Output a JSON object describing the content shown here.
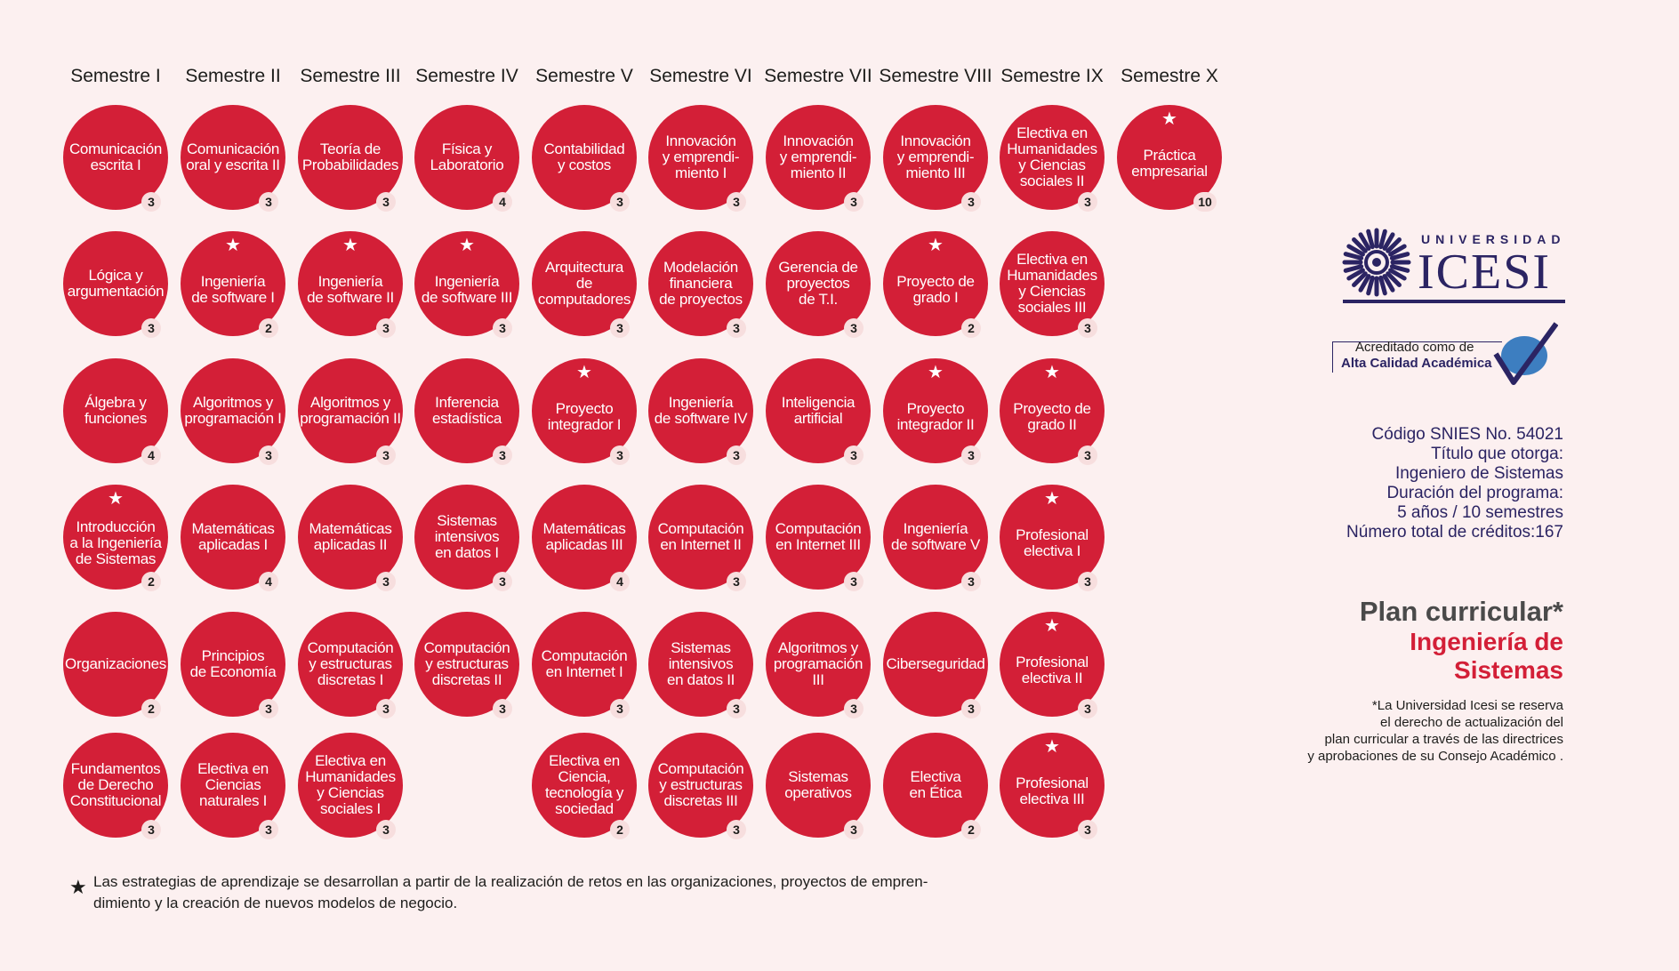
{
  "semesters": [
    "Semestre I",
    "Semestre II",
    "Semestre III",
    "Semestre IV",
    "Semestre V",
    "Semestre VI",
    "Semestre VII",
    "Semestre VIII",
    "Semestre IX",
    "Semestre X"
  ],
  "courses": [
    {
      "name": "Comunicación\nescrita I",
      "credits": "3",
      "star": false,
      "col": 0,
      "row": 0
    },
    {
      "name": "Lógica y\nargumentación",
      "credits": "3",
      "star": false,
      "col": 0,
      "row": 1
    },
    {
      "name": "Álgebra y\nfunciones",
      "credits": "4",
      "star": false,
      "col": 0,
      "row": 2
    },
    {
      "name": "Introducción\na la Ingeniería\nde Sistemas",
      "credits": "2",
      "star": true,
      "col": 0,
      "row": 3
    },
    {
      "name": "Organizaciones",
      "credits": "2",
      "star": false,
      "col": 0,
      "row": 4
    },
    {
      "name": "Fundamentos\nde Derecho\nConstitucional",
      "credits": "3",
      "star": false,
      "col": 0,
      "row": 5
    },
    {
      "name": "Comunicación\noral y escrita II",
      "credits": "3",
      "star": false,
      "col": 1,
      "row": 0
    },
    {
      "name": "Ingeniería\nde software I",
      "credits": "2",
      "star": true,
      "col": 1,
      "row": 1
    },
    {
      "name": "Algoritmos y\nprogramación I",
      "credits": "3",
      "star": false,
      "col": 1,
      "row": 2
    },
    {
      "name": "Matemáticas\naplicadas I",
      "credits": "4",
      "star": false,
      "col": 1,
      "row": 3
    },
    {
      "name": "Principios\nde Economía",
      "credits": "3",
      "star": false,
      "col": 1,
      "row": 4
    },
    {
      "name": "Electiva en\nCiencias\nnaturales I",
      "credits": "3",
      "star": false,
      "col": 1,
      "row": 5
    },
    {
      "name": "Teoría de\nProbabilidades",
      "credits": "3",
      "star": false,
      "col": 2,
      "row": 0
    },
    {
      "name": "Ingeniería\nde software II",
      "credits": "3",
      "star": true,
      "col": 2,
      "row": 1
    },
    {
      "name": "Algoritmos y\nprogramación II",
      "credits": "3",
      "star": false,
      "col": 2,
      "row": 2
    },
    {
      "name": "Matemáticas\naplicadas II",
      "credits": "3",
      "star": false,
      "col": 2,
      "row": 3
    },
    {
      "name": "Computación\ny estructuras\ndiscretas I",
      "credits": "3",
      "star": false,
      "col": 2,
      "row": 4
    },
    {
      "name": "Electiva en\nHumanidades\ny Ciencias\nsociales I",
      "credits": "3",
      "star": false,
      "col": 2,
      "row": 5
    },
    {
      "name": "Física y\nLaboratorio",
      "credits": "4",
      "star": false,
      "col": 3,
      "row": 0
    },
    {
      "name": "Ingeniería\nde software III",
      "credits": "3",
      "star": true,
      "col": 3,
      "row": 1
    },
    {
      "name": "Inferencia\nestadística",
      "credits": "3",
      "star": false,
      "col": 3,
      "row": 2
    },
    {
      "name": "Sistemas\nintensivos\nen datos I",
      "credits": "3",
      "star": false,
      "col": 3,
      "row": 3
    },
    {
      "name": "Computación\ny estructuras\ndiscretas II",
      "credits": "3",
      "star": false,
      "col": 3,
      "row": 4
    },
    {
      "name": "Contabilidad\ny costos",
      "credits": "3",
      "star": false,
      "col": 4,
      "row": 0
    },
    {
      "name": "Arquitectura\nde\ncomputadores",
      "credits": "3",
      "star": false,
      "col": 4,
      "row": 1
    },
    {
      "name": "Proyecto\nintegrador I",
      "credits": "3",
      "star": true,
      "col": 4,
      "row": 2
    },
    {
      "name": "Matemáticas\naplicadas III",
      "credits": "4",
      "star": false,
      "col": 4,
      "row": 3
    },
    {
      "name": "Computación\nen Internet I",
      "credits": "3",
      "star": false,
      "col": 4,
      "row": 4
    },
    {
      "name": "Electiva en\nCiencia,\ntecnología y\nsociedad",
      "credits": "2",
      "star": false,
      "col": 4,
      "row": 5
    },
    {
      "name": "Innovación\ny emprendi-\nmiento I",
      "credits": "3",
      "star": false,
      "col": 5,
      "row": 0
    },
    {
      "name": "Modelación\nfinanciera\nde proyectos",
      "credits": "3",
      "star": false,
      "col": 5,
      "row": 1
    },
    {
      "name": "Ingeniería\nde software IV",
      "credits": "3",
      "star": false,
      "col": 5,
      "row": 2
    },
    {
      "name": "Computación\nen Internet II",
      "credits": "3",
      "star": false,
      "col": 5,
      "row": 3
    },
    {
      "name": "Sistemas\nintensivos\nen datos II",
      "credits": "3",
      "star": false,
      "col": 5,
      "row": 4
    },
    {
      "name": "Computación\ny estructuras\ndiscretas III",
      "credits": "3",
      "star": false,
      "col": 5,
      "row": 5
    },
    {
      "name": "Innovación\ny emprendi-\nmiento II",
      "credits": "3",
      "star": false,
      "col": 6,
      "row": 0
    },
    {
      "name": "Gerencia de\nproyectos\nde T.I.",
      "credits": "3",
      "star": false,
      "col": 6,
      "row": 1
    },
    {
      "name": "Inteligencia\nartificial",
      "credits": "3",
      "star": false,
      "col": 6,
      "row": 2
    },
    {
      "name": "Computación\nen Internet III",
      "credits": "3",
      "star": false,
      "col": 6,
      "row": 3
    },
    {
      "name": "Algoritmos y\nprogramación\nIII",
      "credits": "3",
      "star": false,
      "col": 6,
      "row": 4
    },
    {
      "name": "Sistemas\noperativos",
      "credits": "3",
      "star": false,
      "col": 6,
      "row": 5
    },
    {
      "name": "Innovación\ny emprendi-\nmiento III",
      "credits": "3",
      "star": false,
      "col": 7,
      "row": 0
    },
    {
      "name": "Proyecto de\ngrado I",
      "credits": "2",
      "star": true,
      "col": 7,
      "row": 1
    },
    {
      "name": "Proyecto\nintegrador II",
      "credits": "3",
      "star": true,
      "col": 7,
      "row": 2
    },
    {
      "name": "Ingeniería\nde software V",
      "credits": "3",
      "star": false,
      "col": 7,
      "row": 3
    },
    {
      "name": "Ciberseguridad",
      "credits": "3",
      "star": false,
      "col": 7,
      "row": 4
    },
    {
      "name": "Electiva\nen Ética",
      "credits": "2",
      "star": false,
      "col": 7,
      "row": 5
    },
    {
      "name": "Electiva en\nHumanidades\ny Ciencias\nsociales II",
      "credits": "3",
      "star": false,
      "col": 8,
      "row": 0
    },
    {
      "name": "Electiva en\nHumanidades\ny Ciencias\nsociales III",
      "credits": "3",
      "star": false,
      "col": 8,
      "row": 1
    },
    {
      "name": "Proyecto de\ngrado II",
      "credits": "3",
      "star": true,
      "col": 8,
      "row": 2
    },
    {
      "name": "Profesional\nelectiva I",
      "credits": "3",
      "star": true,
      "col": 8,
      "row": 3
    },
    {
      "name": "Profesional\nelectiva II",
      "credits": "3",
      "star": true,
      "col": 8,
      "row": 4
    },
    {
      "name": "Profesional\nelectiva III",
      "credits": "3",
      "star": true,
      "col": 8,
      "row": 5
    },
    {
      "name": "Práctica\nempresarial",
      "credits": "10",
      "star": true,
      "col": 9,
      "row": 0
    }
  ],
  "footnote": "Las estrategias de aprendizaje se desarrollan a partir de la realización de retos en las organizaciones, proyectos de empren-\ndimiento y la creación de nuevos modelos de negocio.",
  "logo": {
    "top_word": "UNIVERSIDAD",
    "main_word": "ICESI",
    "color": "#2b2463"
  },
  "accreditation": {
    "line1": "Acreditado como de",
    "line2": "Alta Calidad Académica"
  },
  "program_info": [
    "Código SNIES No. 54021",
    "Título que otorga:",
    "Ingeniero de Sistemas",
    "Duración del programa:",
    "5 años / 10 semestres",
    "Número total de créditos:167"
  ],
  "plan": {
    "title": "Plan curricular*",
    "program": "Ingeniería de Sistemas"
  },
  "disclaimer": "*La Universidad Icesi se reserva\nel derecho de actualización del\nplan curricular a través de las directrices\ny aprobaciones de su Consejo Académico .",
  "colors": {
    "course": "#d31f37",
    "background": "#fcf0f0",
    "brand": "#2b2463"
  }
}
